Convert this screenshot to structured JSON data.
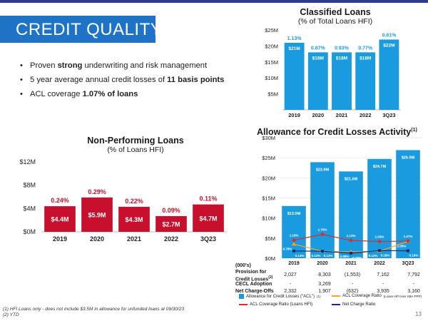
{
  "slide_title": "CREDIT QUALITY",
  "bullets": [
    {
      "pre": "Proven ",
      "bold": "strong",
      "post": " underwriting and risk management"
    },
    {
      "pre": "5 year average annual credit losses of ",
      "bold": "11 basis points",
      "post": ""
    },
    {
      "pre": "ACL coverage ",
      "bold": "1.07% of loans",
      "post": ""
    }
  ],
  "npl": {
    "title": "Non-Performing Loans",
    "subtitle": "(% of Loans HFI)",
    "y_ticks": [
      "$0M",
      "$4M",
      "$8M",
      "$12M"
    ],
    "categories": [
      "2019",
      "2020",
      "2021",
      "2022",
      "3Q23"
    ],
    "bar_labels": [
      "$4.4M",
      "$5.9M",
      "$4.3M",
      "$2.7M",
      "$4.7M"
    ],
    "pct_labels": [
      "0.24%",
      "0.29%",
      "0.22%",
      "0.09%",
      "0.11%"
    ]
  },
  "classified": {
    "title": "Classified Loans",
    "subtitle": "(% of Total Loans HFI)",
    "y_ticks": [
      "$5M",
      "$10M",
      "$15M",
      "$20M",
      "$25M"
    ],
    "categories": [
      "2019",
      "2020",
      "2021",
      "2022",
      "3Q23"
    ],
    "bar_labels": [
      "$21M",
      "$18M",
      "$18M",
      "$18M",
      "$22M"
    ],
    "pct_labels": [
      "1.13%",
      "0.87%",
      "0.93%",
      "0.77%",
      "0.81%"
    ]
  },
  "acl": {
    "title": "Allowance for Credit Losses Activity",
    "title_sup": "(1)",
    "y_ticks": [
      "$0M",
      "$5M",
      "$10M",
      "$15M",
      "$20M",
      "$25M",
      "$30M"
    ],
    "categories": [
      "2019",
      "2020",
      "2021",
      "2022",
      "3Q23"
    ],
    "bar_labels": [
      "$13.0M",
      "$23.9M",
      "$21.6M",
      "$24.7M",
      "$26.9M"
    ],
    "acl_ratio_labels": [
      "1.16%",
      "1.70%",
      "1.13%",
      "1.03%",
      "1.07%"
    ],
    "sba_ratio_labels": [
      "0.78%",
      "0.12%",
      "0.08%",
      "0.12%",
      "1.05%"
    ],
    "nco_ratio_labels": [
      "0.14%",
      "0.12%",
      "-0.06%",
      "0.18%",
      "0.16%"
    ],
    "legend": [
      {
        "label": "Allowance for Credit Losses (\"ACL\")",
        "sup": "(1)"
      },
      {
        "label": "ACL Coverage Ratio ",
        "small": "(Loans HFI less SBA PPP)"
      },
      {
        "label": "ACL Coverage Ratio (Loans HFI)"
      },
      {
        "label": "Net Charge Ratio"
      }
    ]
  },
  "table": {
    "unit": "(000's)",
    "rows": [
      {
        "label": "Provision for",
        "label2": "Credit Losses",
        "sup": "(2)",
        "values": [
          "2,027",
          "8,303",
          "(1,553)",
          "7,162",
          "7,792"
        ]
      },
      {
        "label": "CECL Adoption",
        "values": [
          "-",
          "3,269",
          "-",
          "-",
          "-"
        ]
      },
      {
        "label": "Net Charge-Offs",
        "values": [
          "2,332",
          "1,907",
          "(632)",
          "3,935",
          "3,160"
        ]
      }
    ]
  },
  "footnotes": [
    "(1) HFI Loans only - does not include $3.5M in allowance for unfunded loans at 09/30/23",
    "(2) YTD"
  ],
  "page_number": "13",
  "colors": {
    "banner": "#1f73c7",
    "red_bar": "#c8102e",
    "blue_bar": "#1a9be0",
    "orange_line": "#f5a623",
    "red_line": "#d62e2e",
    "navy_line": "#1f2a6b",
    "pct_red": "#c8102e",
    "pct_blue": "#1a9be0"
  },
  "chart_data": [
    {
      "type": "bar",
      "title": "Non-Performing Loans",
      "subtitle": "(% of Loans HFI)",
      "categories": [
        "2019",
        "2020",
        "2021",
        "2022",
        "3Q23"
      ],
      "values": [
        4.4,
        5.9,
        4.3,
        2.7,
        4.7
      ],
      "unit": "$M",
      "secondary_labels": [
        0.24,
        0.29,
        0.22,
        0.09,
        0.11
      ],
      "ylim": [
        0,
        12
      ],
      "grid": false
    },
    {
      "type": "bar",
      "title": "Classified Loans",
      "subtitle": "(% of Total Loans HFI)",
      "categories": [
        "2019",
        "2020",
        "2021",
        "2022",
        "3Q23"
      ],
      "values": [
        21,
        18,
        18,
        18,
        22
      ],
      "unit": "$M",
      "secondary_labels": [
        1.13,
        0.87,
        0.93,
        0.77,
        0.81
      ],
      "ylim": [
        0,
        25
      ],
      "grid": false
    },
    {
      "type": "bar",
      "title": "Allowance for Credit Losses Activity",
      "categories": [
        "2019",
        "2020",
        "2021",
        "2022",
        "3Q23"
      ],
      "series": [
        {
          "name": "Allowance for Credit Losses (\"ACL\")",
          "values": [
            13.0,
            23.9,
            21.6,
            24.7,
            26.9
          ]
        },
        {
          "name": "ACL Coverage Ratio (Loans HFI less SBA PPP)",
          "values": [
            0.78,
            0.12,
            0.08,
            0.12,
            1.05
          ]
        },
        {
          "name": "ACL Coverage Ratio (Loans HFI)",
          "values": [
            1.16,
            1.7,
            1.13,
            1.03,
            1.07
          ]
        },
        {
          "name": "Net Charge Ratio",
          "values": [
            0.14,
            0.12,
            -0.06,
            0.18,
            0.16
          ]
        }
      ],
      "unit": "$M",
      "ylim": [
        0,
        30
      ],
      "legend_position": "bottom",
      "grid": true
    }
  ]
}
